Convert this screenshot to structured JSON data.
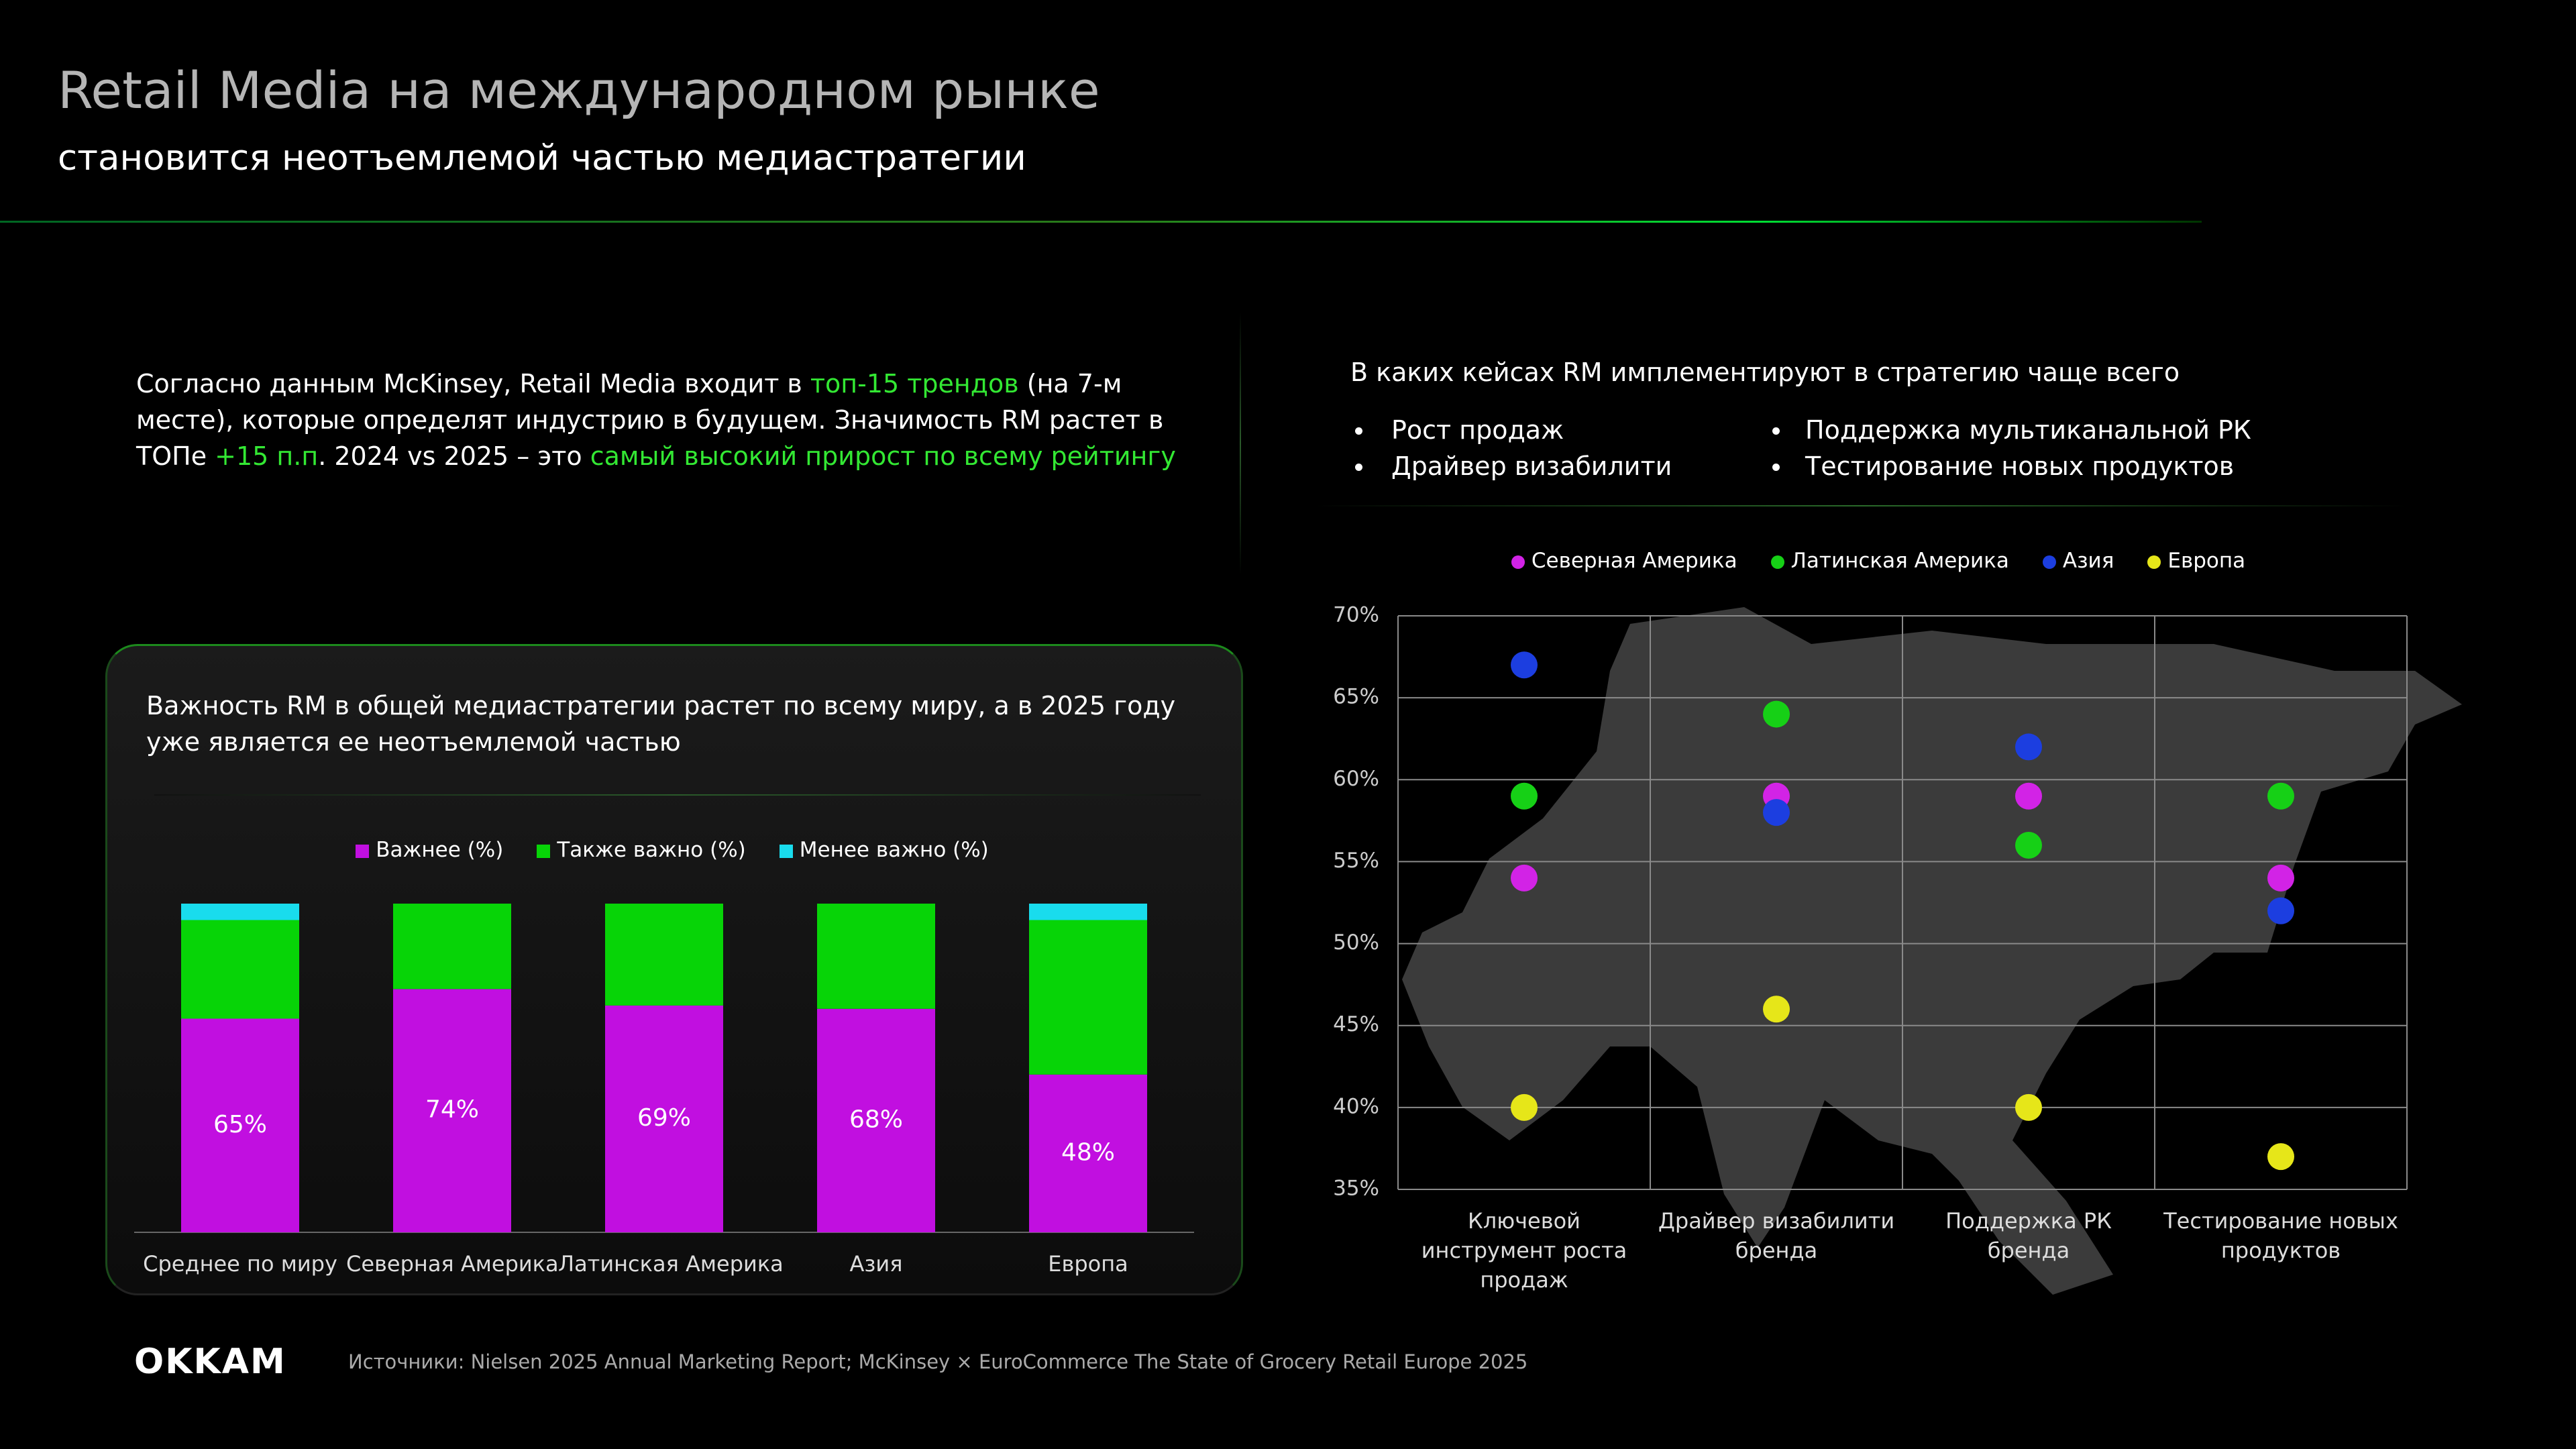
{
  "header": {
    "title": "Retail Media на международном рынке",
    "subtitle": "становится неотъемлемой частью медиастратегии"
  },
  "intro": {
    "segments": [
      {
        "text": "Согласно данным McKinsey, Retail Media входит в ",
        "accent": false
      },
      {
        "text": "топ-15 трендов",
        "accent": true
      },
      {
        "text": " (на 7-м месте), которые определят индустрию в будущем. Значимость RM растет в ТОПе ",
        "accent": false
      },
      {
        "text": "+15 п.п",
        "accent": true
      },
      {
        "text": ". 2024 vs 2025 – это ",
        "accent": false
      },
      {
        "text": "самый высокий прирост по всему рейтингу",
        "accent": true
      }
    ]
  },
  "cases": {
    "title": "В каких кейсах RM имплементируют в стратегию чаще всего",
    "bullets": [
      "Рост продаж",
      "Драйвер визабилити",
      "Поддержка мультиканальной РК",
      "Тестирование новых продуктов"
    ]
  },
  "chart_data": [
    {
      "type": "bar",
      "stacked": true,
      "title": "Важность RM в общей медиастратегии растет по всему миру, а в 2025 году уже является ее неотъемлемой частью",
      "categories": [
        "Среднее по миру",
        "Северная Америка",
        "Латинская Америка",
        "Азия",
        "Европа"
      ],
      "series": [
        {
          "name": "Важнее (%)",
          "color": "#c10fe0",
          "values": [
            65,
            74,
            69,
            68,
            48
          ],
          "value_labels": [
            "65%",
            "74%",
            "69%",
            "68%",
            "48%"
          ]
        },
        {
          "name": "Также важно (%)",
          "color": "#07d407",
          "values": [
            30,
            26,
            31,
            32,
            47
          ]
        },
        {
          "name": "Менее важно (%)",
          "color": "#19dced",
          "values": [
            5,
            0,
            0,
            0,
            5
          ]
        }
      ]
    },
    {
      "type": "scatter",
      "categories": [
        "Ключевой инструмент роста продаж",
        "Драйвер визабилити бренда",
        "Поддержка РК бренда",
        "Тестирование новых продуктов"
      ],
      "series": [
        {
          "name": "Северная Америка",
          "color": "#d223e6",
          "values": [
            54,
            59,
            59,
            54
          ]
        },
        {
          "name": "Латинская Америка",
          "color": "#16d016",
          "values": [
            59,
            64,
            56,
            59
          ]
        },
        {
          "name": "Азия",
          "color": "#1c3ee0",
          "values": [
            67,
            58,
            62,
            52
          ]
        },
        {
          "name": "Европа",
          "color": "#e6e619",
          "values": [
            40,
            46,
            40,
            37
          ]
        }
      ],
      "ylim": [
        35,
        70
      ],
      "yticks": [
        {
          "value": 35,
          "label": "35%"
        },
        {
          "value": 40,
          "label": "40%"
        },
        {
          "value": 45,
          "label": "45%"
        },
        {
          "value": 50,
          "label": "50%"
        },
        {
          "value": 55,
          "label": "55%"
        },
        {
          "value": 60,
          "label": "60%"
        },
        {
          "value": 65,
          "label": "65%"
        },
        {
          "value": 70,
          "label": "70%"
        }
      ],
      "grid": true
    }
  ],
  "footer": {
    "logo": "OKKAM",
    "source": "Источники: Nielsen 2025 Annual Marketing Report; McKinsey × EuroCommerce The State of Grocery Retail Europe 2025"
  }
}
